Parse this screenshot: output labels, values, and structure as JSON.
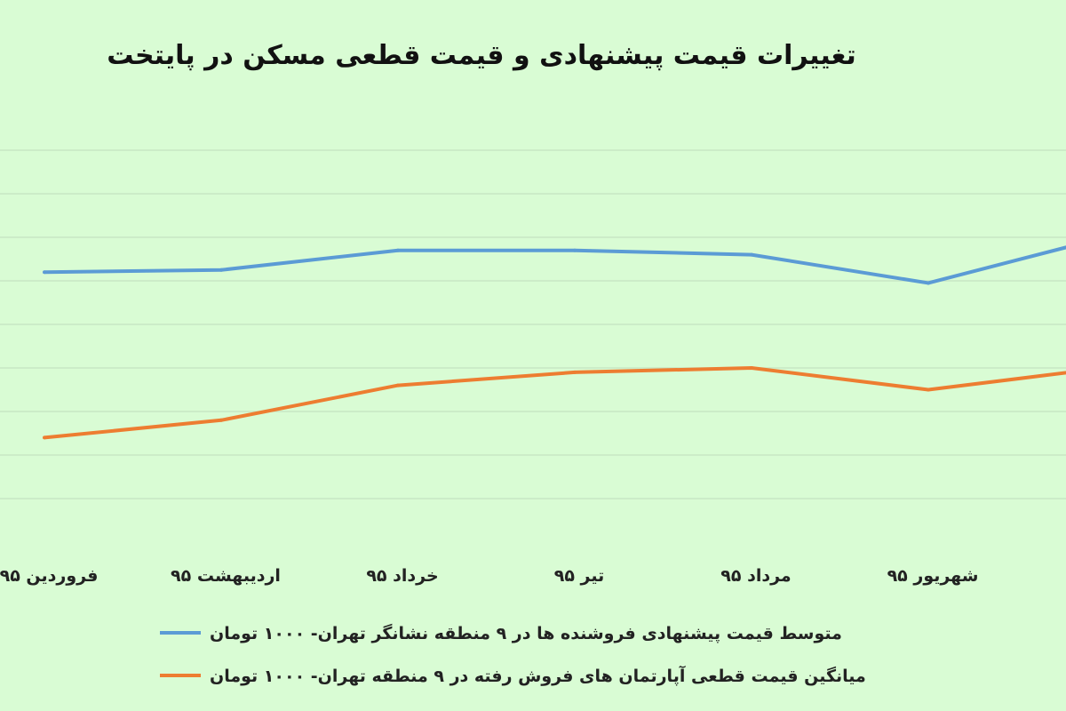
{
  "chart_data": {
    "type": "line",
    "title": "تغییرات قیمت پیشنهادی و قیمت قطعی مسکن در پایتخت",
    "xlabel": "",
    "ylabel": "",
    "categories": [
      "فروردین ۹۵",
      "اردیبهشت ۹۵",
      "خرداد ۹۵",
      "تیر ۹۵",
      "مرداد ۹۵",
      "شهریور ۹۵",
      ""
    ],
    "ylim": [
      0,
      10
    ],
    "grid": true,
    "legend_position": "bottom",
    "series": [
      {
        "name": "متوسط قیمت پیشنهادی فروشنده ها در ۹ منطقه نشانگر تهران- ۱۰۰۰ تومان",
        "values": [
          6.2,
          6.25,
          6.7,
          6.7,
          6.6,
          5.95,
          7.0
        ],
        "color": "#5b9bd5"
      },
      {
        "name": "میانگین قیمت قطعی آپارتمان های فروش رفته در ۹ منطقه تهران- ۱۰۰۰ تومان",
        "values": [
          2.4,
          2.8,
          3.6,
          3.9,
          4.0,
          3.5,
          4.0
        ],
        "color": "#ed7d31"
      }
    ]
  }
}
